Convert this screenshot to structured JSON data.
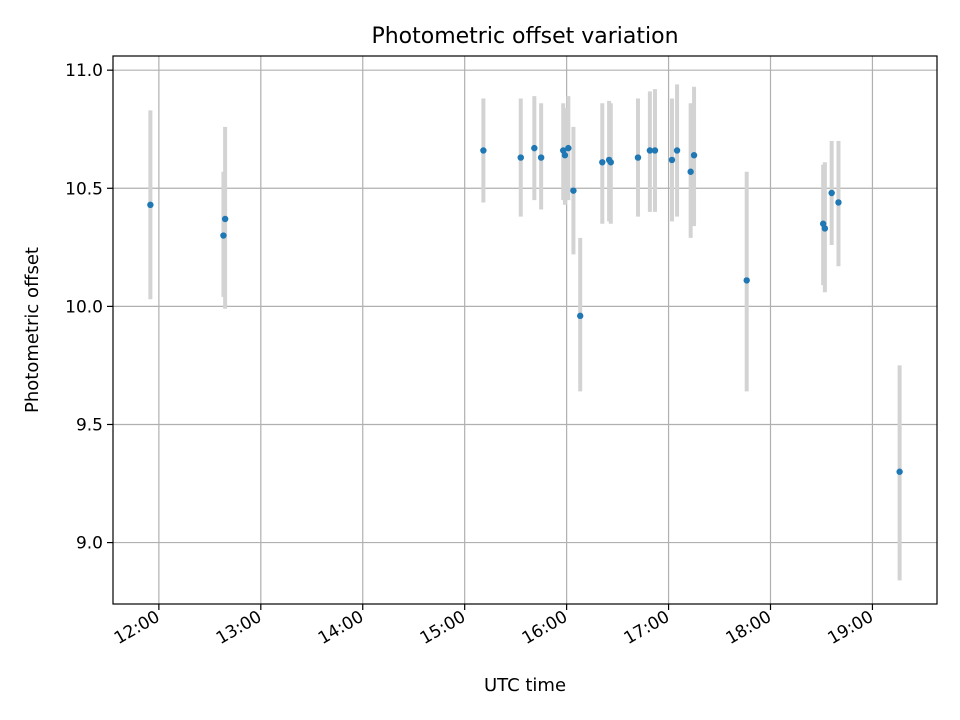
{
  "chart_data": {
    "type": "scatter",
    "title": "Photometric offset variation",
    "xlabel": "UTC time",
    "ylabel": "Photometric offset",
    "x_unit": "UTC time of day",
    "xlim": [
      "11:33",
      "19:38"
    ],
    "ylim": [
      8.74,
      11.06
    ],
    "x_ticks": [
      "12:00",
      "13:00",
      "14:00",
      "15:00",
      "16:00",
      "17:00",
      "18:00",
      "19:00"
    ],
    "y_ticks": [
      "9.0",
      "9.5",
      "10.0",
      "10.5",
      "11.0"
    ],
    "grid": true,
    "point_color": "#1f77b4",
    "errorbar_color": "#d3d3d3",
    "series": [
      {
        "points": [
          {
            "x": "11:55",
            "y": 10.43,
            "yerr_low": 10.03,
            "yerr_high": 10.83
          },
          {
            "x": "12:38",
            "y": 10.3,
            "yerr_low": 10.04,
            "yerr_high": 10.57
          },
          {
            "x": "12:39",
            "y": 10.37,
            "yerr_low": 9.99,
            "yerr_high": 10.76
          },
          {
            "x": "15:11",
            "y": 10.66,
            "yerr_low": 10.44,
            "yerr_high": 10.88
          },
          {
            "x": "15:33",
            "y": 10.63,
            "yerr_low": 10.38,
            "yerr_high": 10.88
          },
          {
            "x": "15:41",
            "y": 10.67,
            "yerr_low": 10.45,
            "yerr_high": 10.89
          },
          {
            "x": "15:45",
            "y": 10.63,
            "yerr_low": 10.41,
            "yerr_high": 10.86
          },
          {
            "x": "15:58",
            "y": 10.66,
            "yerr_low": 10.45,
            "yerr_high": 10.86
          },
          {
            "x": "15:59",
            "y": 10.64,
            "yerr_low": 10.43,
            "yerr_high": 10.84
          },
          {
            "x": "16:01",
            "y": 10.67,
            "yerr_low": 10.45,
            "yerr_high": 10.89
          },
          {
            "x": "16:04",
            "y": 10.49,
            "yerr_low": 10.22,
            "yerr_high": 10.76
          },
          {
            "x": "16:08",
            "y": 9.96,
            "yerr_low": 9.64,
            "yerr_high": 10.29
          },
          {
            "x": "16:21",
            "y": 10.61,
            "yerr_low": 10.35,
            "yerr_high": 10.86
          },
          {
            "x": "16:25",
            "y": 10.62,
            "yerr_low": 10.36,
            "yerr_high": 10.87
          },
          {
            "x": "16:26",
            "y": 10.61,
            "yerr_low": 10.35,
            "yerr_high": 10.86
          },
          {
            "x": "16:42",
            "y": 10.63,
            "yerr_low": 10.38,
            "yerr_high": 10.88
          },
          {
            "x": "16:49",
            "y": 10.66,
            "yerr_low": 10.4,
            "yerr_high": 10.91
          },
          {
            "x": "16:52",
            "y": 10.66,
            "yerr_low": 10.4,
            "yerr_high": 10.92
          },
          {
            "x": "17:02",
            "y": 10.62,
            "yerr_low": 10.36,
            "yerr_high": 10.88
          },
          {
            "x": "17:05",
            "y": 10.66,
            "yerr_low": 10.38,
            "yerr_high": 10.94
          },
          {
            "x": "17:13",
            "y": 10.57,
            "yerr_low": 10.29,
            "yerr_high": 10.86
          },
          {
            "x": "17:15",
            "y": 10.64,
            "yerr_low": 10.34,
            "yerr_high": 10.93
          },
          {
            "x": "17:46",
            "y": 10.11,
            "yerr_low": 9.64,
            "yerr_high": 10.57
          },
          {
            "x": "18:31",
            "y": 10.35,
            "yerr_low": 10.09,
            "yerr_high": 10.6
          },
          {
            "x": "18:32",
            "y": 10.33,
            "yerr_low": 10.06,
            "yerr_high": 10.61
          },
          {
            "x": "18:36",
            "y": 10.48,
            "yerr_low": 10.26,
            "yerr_high": 10.7
          },
          {
            "x": "18:40",
            "y": 10.44,
            "yerr_low": 10.17,
            "yerr_high": 10.7
          },
          {
            "x": "19:16",
            "y": 9.3,
            "yerr_low": 8.84,
            "yerr_high": 9.75
          }
        ]
      }
    ]
  }
}
